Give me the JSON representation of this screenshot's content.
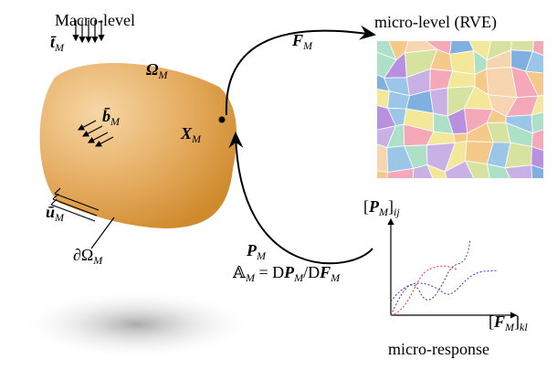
{
  "titles": {
    "macro": "Macro-level",
    "micro": "micro-level (RVE)",
    "response": "micro-response"
  },
  "labels": {
    "traction": {
      "base": "t̄",
      "sub": "M"
    },
    "domain": {
      "base": "Ω",
      "sub": "M"
    },
    "body_force": {
      "base": "b̄",
      "sub": "M"
    },
    "point": {
      "base": "X",
      "sub": "M"
    },
    "displacement": {
      "base": "ū",
      "sub": "M"
    },
    "boundary": {
      "base": "∂Ω",
      "sub": "M"
    },
    "deformation": {
      "base": "F",
      "sub": "M"
    },
    "stress": {
      "base": "P",
      "sub": "M"
    },
    "tangent": [
      "𝔸",
      "M",
      " = D",
      "P",
      "M",
      "/D",
      "F",
      "M"
    ],
    "y_axis": [
      "[",
      "P",
      "M",
      "]",
      "ij"
    ],
    "x_axis": [
      "[",
      "F",
      "M",
      "]",
      "kl"
    ]
  }
}
